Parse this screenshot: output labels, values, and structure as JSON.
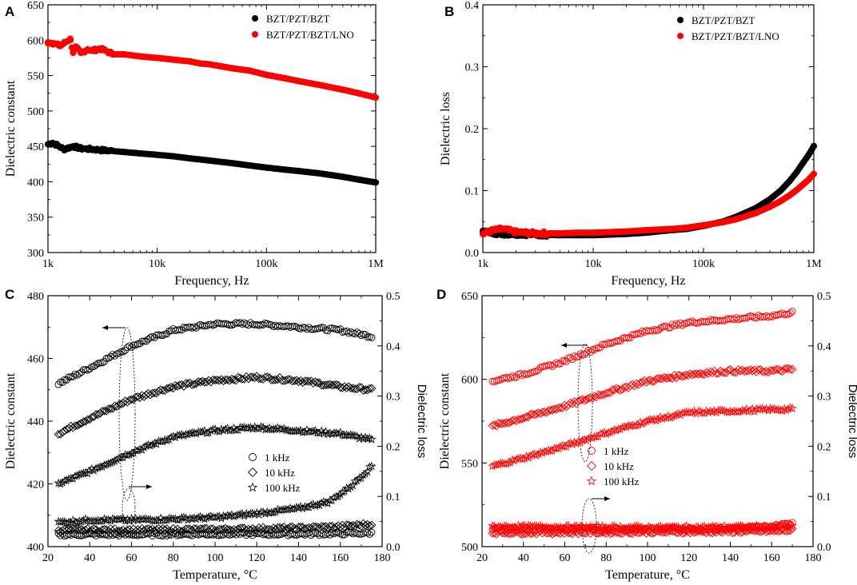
{
  "colors": {
    "black": "#000000",
    "red": "#ff0000",
    "axis": "#000000"
  },
  "chart_data": [
    {
      "panel": "A",
      "type": "scatter",
      "xscale": "log",
      "xlabel": "Frequency, Hz",
      "ylabel": "Dielectric constant",
      "xlim": [
        1000,
        1000000
      ],
      "ylim": [
        300,
        650
      ],
      "xticks": [
        1000,
        10000,
        100000,
        1000000
      ],
      "xtick_labels": [
        "1k",
        "10k",
        "100k",
        "1M"
      ],
      "yticks": [
        300,
        350,
        400,
        450,
        500,
        550,
        600,
        650
      ],
      "ytick_labels": [
        "300",
        "350",
        "400",
        "450",
        "500",
        "550",
        "600",
        "650"
      ],
      "legend_position": "top-right",
      "series": [
        {
          "name": "BZT/PZT/BZT",
          "color": "black",
          "marker": "filled-circle",
          "x": [
            1000,
            1100,
            1200,
            1400,
            1700,
            2000,
            2500,
            3500,
            5000,
            7000,
            10000,
            14000,
            20000,
            30000,
            50000,
            70000,
            100000,
            150000,
            200000,
            300000,
            500000,
            700000,
            1000000
          ],
          "y": [
            453,
            455,
            452,
            446,
            450,
            447,
            446,
            444,
            442,
            440,
            438,
            436,
            433,
            430,
            426,
            423,
            420,
            417,
            415,
            412,
            407,
            403,
            399
          ]
        },
        {
          "name": "BZT/PZT/BZT/LNO",
          "color": "red",
          "marker": "filled-circle",
          "x": [
            1000,
            1100,
            1300,
            1600,
            1700,
            1800,
            2000,
            2300,
            2500,
            3000,
            4000,
            5000,
            7000,
            10000,
            15000,
            20000,
            25000,
            30000,
            50000,
            70000,
            100000,
            150000,
            200000,
            300000,
            500000,
            700000,
            1000000
          ],
          "y": [
            597,
            596,
            592,
            602,
            583,
            590,
            582,
            587,
            585,
            588,
            580,
            580,
            577,
            575,
            572,
            570,
            567,
            566,
            560,
            557,
            551,
            546,
            542,
            537,
            530,
            525,
            519
          ]
        }
      ]
    },
    {
      "panel": "B",
      "type": "scatter",
      "xscale": "log",
      "xlabel": "Frequency, Hz",
      "ylabel": "Dielectric loss",
      "xlim": [
        1000,
        1000000
      ],
      "ylim": [
        0.0,
        0.4
      ],
      "xticks": [
        1000,
        10000,
        100000,
        1000000
      ],
      "xtick_labels": [
        "1k",
        "10k",
        "100k",
        "1M"
      ],
      "yticks": [
        0.0,
        0.1,
        0.2,
        0.3,
        0.4
      ],
      "ytick_labels": [
        "0.0",
        "0.1",
        "0.2",
        "0.3",
        "0.4"
      ],
      "legend_position": "top-right",
      "series": [
        {
          "name": "BZT/PZT/BZT",
          "color": "black",
          "marker": "filled-circle",
          "x": [
            1000,
            1200,
            1500,
            2000,
            3000,
            5000,
            7000,
            10000,
            20000,
            30000,
            50000,
            70000,
            100000,
            150000,
            200000,
            300000,
            400000,
            500000,
            600000,
            700000,
            800000,
            900000,
            1000000
          ],
          "y": [
            0.035,
            0.032,
            0.03,
            0.03,
            0.029,
            0.028,
            0.028,
            0.028,
            0.03,
            0.032,
            0.036,
            0.038,
            0.043,
            0.05,
            0.058,
            0.072,
            0.086,
            0.1,
            0.115,
            0.13,
            0.145,
            0.158,
            0.172
          ]
        },
        {
          "name": "BZT/PZT/BZT/LNO",
          "color": "red",
          "marker": "filled-circle",
          "x": [
            1000,
            1200,
            1500,
            2000,
            3000,
            5000,
            7000,
            10000,
            20000,
            30000,
            50000,
            70000,
            100000,
            150000,
            200000,
            300000,
            400000,
            500000,
            600000,
            700000,
            800000,
            900000,
            1000000
          ],
          "y": [
            0.03,
            0.035,
            0.038,
            0.033,
            0.031,
            0.031,
            0.032,
            0.032,
            0.034,
            0.036,
            0.038,
            0.04,
            0.044,
            0.049,
            0.054,
            0.064,
            0.074,
            0.083,
            0.092,
            0.101,
            0.11,
            0.118,
            0.127
          ]
        }
      ]
    },
    {
      "panel": "C",
      "type": "scatter",
      "xlabel": "Temperature, °C",
      "ylabel": "Dielectric constant",
      "ylabel_right": "Dielectric loss",
      "xlim": [
        20,
        180
      ],
      "ylim": [
        400,
        480
      ],
      "ylim_right": [
        0.0,
        0.5
      ],
      "xticks": [
        20,
        40,
        60,
        80,
        100,
        120,
        140,
        160,
        180
      ],
      "xtick_labels": [
        "20",
        "40",
        "60",
        "80",
        "100",
        "120",
        "140",
        "160",
        "180"
      ],
      "yticks": [
        400,
        420,
        440,
        460,
        480
      ],
      "ytick_labels": [
        "400",
        "420",
        "440",
        "460",
        "480"
      ],
      "yticks_right": [
        0.0,
        0.1,
        0.2,
        0.3,
        0.4,
        0.5
      ],
      "ytick_labels_right": [
        "0.0",
        "0.1",
        "0.2",
        "0.3",
        "0.4",
        "0.5"
      ],
      "color": "black",
      "legend_position": "center-right",
      "legend": [
        "1 kHz",
        "10 kHz",
        "100 kHz"
      ],
      "series": [
        {
          "name": "1 kHz",
          "marker": "circle",
          "axis": "left",
          "x": [
            25,
            40,
            60,
            80,
            100,
            120,
            140,
            160,
            175
          ],
          "y": [
            452,
            457,
            464,
            469,
            471,
            471,
            470,
            469,
            467
          ]
        },
        {
          "name": "10 kHz",
          "marker": "diamond",
          "axis": "left",
          "x": [
            25,
            40,
            60,
            80,
            100,
            120,
            140,
            160,
            175
          ],
          "y": [
            436,
            441,
            447,
            451,
            453,
            454,
            453,
            451,
            450
          ]
        },
        {
          "name": "100 kHz",
          "marker": "star",
          "axis": "left",
          "x": [
            25,
            40,
            60,
            80,
            100,
            120,
            140,
            160,
            175
          ],
          "y": [
            420,
            424,
            430,
            435,
            437,
            438,
            437,
            436,
            434
          ]
        },
        {
          "name": "1 kHz",
          "marker": "circle",
          "axis": "right",
          "x": [
            25,
            60,
            100,
            140,
            160,
            175
          ],
          "y": [
            0.024,
            0.024,
            0.025,
            0.025,
            0.026,
            0.027
          ]
        },
        {
          "name": "10 kHz",
          "marker": "diamond",
          "axis": "right",
          "x": [
            25,
            60,
            100,
            140,
            160,
            175
          ],
          "y": [
            0.033,
            0.033,
            0.034,
            0.037,
            0.04,
            0.045
          ]
        },
        {
          "name": "100 kHz",
          "marker": "star",
          "axis": "right",
          "x": [
            25,
            40,
            60,
            80,
            100,
            120,
            140,
            155,
            165,
            170,
            175
          ],
          "y": [
            0.048,
            0.053,
            0.053,
            0.055,
            0.058,
            0.066,
            0.076,
            0.09,
            0.12,
            0.14,
            0.16
          ]
        }
      ],
      "annotations": [
        "arrow-left-from-ellipse-at-60C-upper",
        "arrow-right-from-ellipse-at-60C-lower"
      ]
    },
    {
      "panel": "D",
      "type": "scatter",
      "xlabel": "Temperature, °C",
      "ylabel": "Dielectric constant",
      "ylabel_right": "Dielectric loss",
      "xlim": [
        20,
        180
      ],
      "ylim": [
        500,
        650
      ],
      "ylim_right": [
        0.0,
        0.5
      ],
      "xticks": [
        20,
        40,
        60,
        80,
        100,
        120,
        140,
        160,
        180
      ],
      "xtick_labels": [
        "20",
        "40",
        "60",
        "80",
        "100",
        "120",
        "140",
        "160",
        "180"
      ],
      "yticks": [
        500,
        550,
        600,
        650
      ],
      "ytick_labels": [
        "500",
        "550",
        "600",
        "650"
      ],
      "yticks_right": [
        0.0,
        0.1,
        0.2,
        0.3,
        0.4,
        0.5
      ],
      "ytick_labels_right": [
        "0.0",
        "0.1",
        "0.2",
        "0.3",
        "0.4",
        "0.5"
      ],
      "color": "red",
      "legend_position": "center-right",
      "legend": [
        "1 kHz",
        "10 kHz",
        "100 kHz"
      ],
      "series": [
        {
          "name": "1 kHz",
          "marker": "circle",
          "axis": "left",
          "x": [
            25,
            40,
            60,
            80,
            100,
            120,
            140,
            160,
            170
          ],
          "y": [
            599,
            603,
            611,
            621,
            629,
            634,
            636,
            638,
            640
          ]
        },
        {
          "name": "10 kHz",
          "marker": "diamond",
          "axis": "left",
          "x": [
            25,
            40,
            60,
            80,
            100,
            120,
            140,
            160,
            170
          ],
          "y": [
            572,
            577,
            584,
            592,
            599,
            603,
            605,
            605,
            606
          ]
        },
        {
          "name": "100 kHz",
          "marker": "star",
          "axis": "left",
          "x": [
            25,
            40,
            60,
            80,
            100,
            120,
            140,
            160,
            170
          ],
          "y": [
            548,
            553,
            560,
            568,
            575,
            580,
            581,
            582,
            582
          ]
        },
        {
          "name": "1 kHz",
          "marker": "circle",
          "axis": "right",
          "x": [
            25,
            60,
            100,
            140,
            160,
            170
          ],
          "y": [
            0.035,
            0.035,
            0.035,
            0.036,
            0.04,
            0.048
          ]
        },
        {
          "name": "10 kHz",
          "marker": "diamond",
          "axis": "right",
          "x": [
            25,
            60,
            100,
            140,
            160,
            170
          ],
          "y": [
            0.028,
            0.028,
            0.029,
            0.03,
            0.031,
            0.033
          ]
        },
        {
          "name": "100 kHz",
          "marker": "star",
          "axis": "right",
          "x": [
            25,
            60,
            100,
            140,
            160,
            170
          ],
          "y": [
            0.04,
            0.039,
            0.038,
            0.039,
            0.04,
            0.041
          ]
        }
      ],
      "annotations": [
        "arrow-left-from-ellipse-at-70C-upper",
        "arrow-right-from-ellipse-at-70C-lower"
      ]
    }
  ]
}
